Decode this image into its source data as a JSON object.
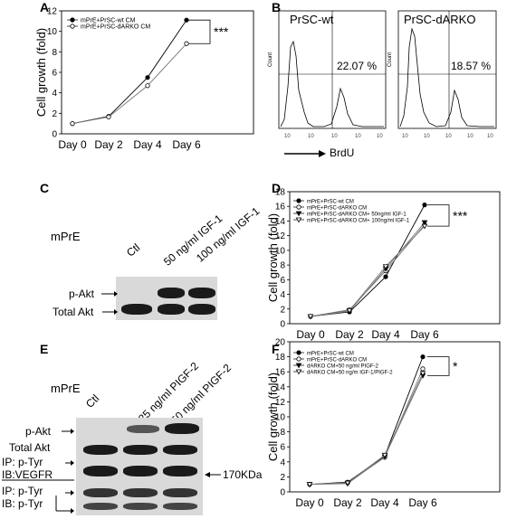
{
  "panels": {
    "A": {
      "letter": "A",
      "ylabel": "Cell growth (fold)",
      "categories": [
        "Day 0",
        "Day 2",
        "Day 4",
        "Day 6"
      ],
      "yticks": [
        "0",
        "2",
        "4",
        "6",
        "8",
        "10",
        "12"
      ],
      "legend": [
        "mPrE+PrSC-wt CM",
        "mPrE+PrSC-dARKO CM"
      ],
      "sig": "***"
    },
    "B": {
      "letter": "B",
      "plots": [
        {
          "title": "PrSC-wt",
          "percent": "22.07 %"
        },
        {
          "title": "PrSC-dARKO",
          "percent": "18.57 %"
        }
      ],
      "ylabel": "Count",
      "xlabel": "BrdU"
    },
    "C": {
      "letter": "C",
      "cell_label": "mPrE",
      "lanes": [
        "Ctl",
        "50 ng/ml IGF-1",
        "100 ng/ml IGF-1"
      ],
      "rows": [
        "p-Akt",
        "Total Akt"
      ]
    },
    "D": {
      "letter": "D",
      "ylabel": "Cell growth (fold)",
      "categories": [
        "Day 0",
        "Day 2",
        "Day 4",
        "Day 6"
      ],
      "yticks": [
        "0",
        "2",
        "4",
        "6",
        "8",
        "10",
        "12",
        "14",
        "16",
        "18"
      ],
      "legend": [
        "mPrE+PrSC-wt CM",
        "mPrE+PrSC-dARKO CM",
        "mPrE+PrSC-dARKO CM+ 50ng/ml IGF-1",
        "mPrE+PrSC-dARKO CM+ 100ng/ml IGF-1"
      ],
      "sig": "***"
    },
    "E": {
      "letter": "E",
      "cell_label": "mPrE",
      "lanes": [
        "Ctl",
        "25 ng/ml PIGF-2",
        "50 ng/ml PIGF-2"
      ],
      "rows": [
        "p-Akt",
        "Total Akt",
        "IP: p-Tyr",
        "IB:VEGFR",
        "IP: p-Tyr",
        "IB: p-Tyr"
      ],
      "marker": "170KDa"
    },
    "F": {
      "letter": "F",
      "ylabel": "Cell growth (fold)",
      "categories": [
        "Day 0",
        "Day 2",
        "Day 4",
        "Day 6"
      ],
      "yticks": [
        "0",
        "2",
        "4",
        "6",
        "8",
        "10",
        "12",
        "14",
        "16",
        "18",
        "20"
      ],
      "legend": [
        "mPrE+PrSC-wt CM",
        "mPrE+PrSC-dARKO CM",
        "dARKO CM+50 ng/ml PIGF-2",
        "dARKO CM+50 ng/m IGF-1/PIGF-2"
      ],
      "sig": "*"
    }
  },
  "chart_data": [
    {
      "type": "line",
      "panel": "A",
      "categories": [
        "Day 0",
        "Day 2",
        "Day 4",
        "Day 6"
      ],
      "ylim": [
        0,
        12
      ],
      "series": [
        {
          "name": "mPrE+PrSC-wt CM",
          "values": [
            1.0,
            1.7,
            5.5,
            11.1
          ],
          "marker": "filled"
        },
        {
          "name": "mPrE+PrSC-dARKO CM",
          "values": [
            1.0,
            1.65,
            4.7,
            8.8
          ],
          "marker": "open"
        }
      ]
    },
    {
      "type": "line",
      "panel": "D",
      "categories": [
        "Day 0",
        "Day 2",
        "Day 4",
        "Day 6"
      ],
      "ylim": [
        0,
        18
      ],
      "series": [
        {
          "name": "mPrE+PrSC-wt CM",
          "values": [
            1.0,
            1.6,
            6.4,
            16.2
          ],
          "marker": "filled"
        },
        {
          "name": "mPrE+PrSC-dARKO CM",
          "values": [
            1.0,
            1.9,
            7.2,
            13.5
          ],
          "marker": "open"
        },
        {
          "name": "mPrE+PrSC-dARKO CM+ 50ng/ml IGF-1",
          "values": [
            1.0,
            1.7,
            7.5,
            13.8
          ],
          "marker": "filled-triangle"
        },
        {
          "name": "mPrE+PrSC-dARKO CM+ 100ng/ml IGF-1",
          "values": [
            1.0,
            1.8,
            7.8,
            13.3
          ],
          "marker": "open-triangle"
        }
      ]
    },
    {
      "type": "line",
      "panel": "F",
      "categories": [
        "Day 0",
        "Day 2",
        "Day 4",
        "Day 6"
      ],
      "ylim": [
        0,
        20
      ],
      "series": [
        {
          "name": "mPrE+PrSC-wt CM",
          "values": [
            1.0,
            1.3,
            4.8,
            18.0
          ],
          "marker": "filled"
        },
        {
          "name": "mPrE+PrSC-dARKO CM",
          "values": [
            1.0,
            1.2,
            4.6,
            16.4
          ],
          "marker": "open"
        },
        {
          "name": "dARKO CM+50 ng/ml PIGF-2",
          "values": [
            1.0,
            1.1,
            4.7,
            15.5
          ],
          "marker": "filled-triangle"
        },
        {
          "name": "dARKO CM+50 ng/m IGF-1/PIGF-2",
          "values": [
            1.0,
            1.2,
            4.9,
            15.8
          ],
          "marker": "open-triangle"
        }
      ]
    }
  ]
}
